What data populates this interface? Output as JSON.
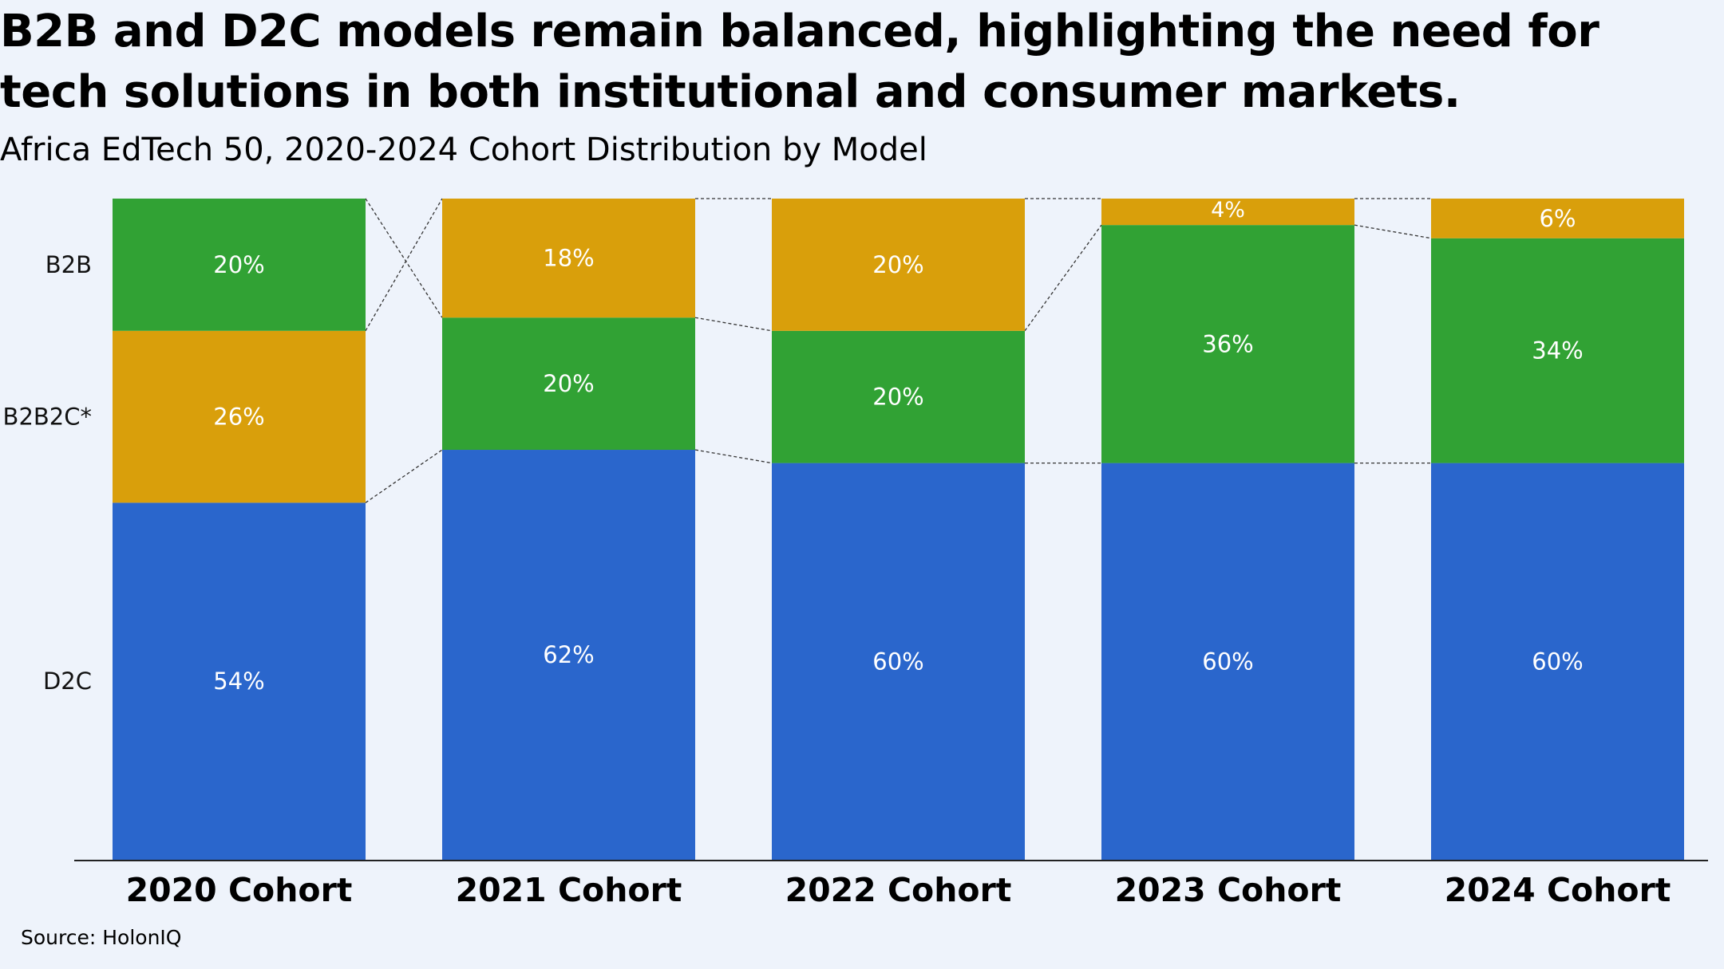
{
  "title": "B2B and D2C models remain balanced, highlighting the need for tech solutions in both institutional and consumer markets.",
  "subtitle": "Africa EdTech 50, 2020-2024 Cohort Distribution by Model",
  "source": "Source: HolonIQ",
  "colors": {
    "background": "#eef3fb",
    "d2c": "#2a66cc",
    "green": "#31a234",
    "gold": "#d99f0b",
    "connector": "#333333",
    "axis": "#222222"
  },
  "chart_data": {
    "type": "bar",
    "stacked": true,
    "normalized": true,
    "title": "B2B and D2C models remain balanced, highlighting the need for tech solutions in both institutional and consumer markets.",
    "subtitle": "Africa EdTech 50, 2020-2024 Cohort Distribution by Model",
    "categories": [
      "2020 Cohort",
      "2021 Cohort",
      "2022 Cohort",
      "2023 Cohort",
      "2024 Cohort"
    ],
    "row_labels": [
      "B2B",
      "B2B2C*",
      "D2C"
    ],
    "ylim": [
      0,
      100
    ],
    "stacks": [
      {
        "category": "2020 Cohort",
        "segments": [
          {
            "value": 54,
            "label": "54%",
            "color": "#2a66cc"
          },
          {
            "value": 26,
            "label": "26%",
            "color": "#d99f0b"
          },
          {
            "value": 20,
            "label": "20%",
            "color": "#31a234"
          }
        ]
      },
      {
        "category": "2021 Cohort",
        "segments": [
          {
            "value": 62,
            "label": "62%",
            "color": "#2a66cc"
          },
          {
            "value": 20,
            "label": "20%",
            "color": "#31a234"
          },
          {
            "value": 18,
            "label": "18%",
            "color": "#d99f0b"
          }
        ]
      },
      {
        "category": "2022 Cohort",
        "segments": [
          {
            "value": 60,
            "label": "60%",
            "color": "#2a66cc"
          },
          {
            "value": 20,
            "label": "20%",
            "color": "#31a234"
          },
          {
            "value": 20,
            "label": "20%",
            "color": "#d99f0b"
          }
        ]
      },
      {
        "category": "2023 Cohort",
        "segments": [
          {
            "value": 60,
            "label": "60%",
            "color": "#2a66cc"
          },
          {
            "value": 36,
            "label": "36%",
            "color": "#31a234"
          },
          {
            "value": 4,
            "label": "4%",
            "color": "#d99f0b"
          }
        ]
      },
      {
        "category": "2024 Cohort",
        "segments": [
          {
            "value": 60,
            "label": "60%",
            "color": "#2a66cc"
          },
          {
            "value": 34,
            "label": "34%",
            "color": "#31a234"
          },
          {
            "value": 6,
            "label": "6%",
            "color": "#d99f0b"
          }
        ]
      }
    ],
    "connectors": "dashed lines linking same-colored segment boundaries between adjacent bars",
    "grid": false,
    "legend": "none"
  }
}
